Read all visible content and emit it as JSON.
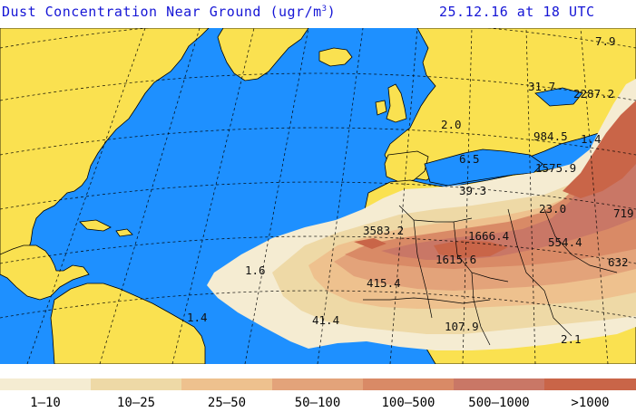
{
  "header": {
    "title": "Dust Concentration Near Ground (ugr/m",
    "title_sup": "3",
    "title_close": ")",
    "timestamp": "25.12.16 at 18 UTC"
  },
  "colors": {
    "ocean": "#1e90ff",
    "land": "#fae150",
    "title": "#1616d6"
  },
  "map": {
    "values": [
      "7.9",
      "31.7",
      "2287.2",
      "984.5",
      "1.4",
      "2.0",
      "6.5",
      "1575.9",
      "39.3",
      "23.0",
      "719",
      "3583.2",
      "1666.4",
      "554.4",
      "1615.6",
      "1.6",
      "632",
      "415.4",
      "1.4",
      "41.4",
      "107.9",
      "2.1"
    ]
  },
  "legend": {
    "items": [
      {
        "label": "1–10",
        "color": "#f5ecd2"
      },
      {
        "label": "10–25",
        "color": "#eed9a6"
      },
      {
        "label": "25–50",
        "color": "#eec18e"
      },
      {
        "label": "50–100",
        "color": "#e3a37a"
      },
      {
        "label": "100–500",
        "color": "#d98a66"
      },
      {
        "label": "500–1000",
        "color": "#c97766"
      },
      {
        "label": ">1000",
        "color": "#c96548"
      }
    ]
  }
}
